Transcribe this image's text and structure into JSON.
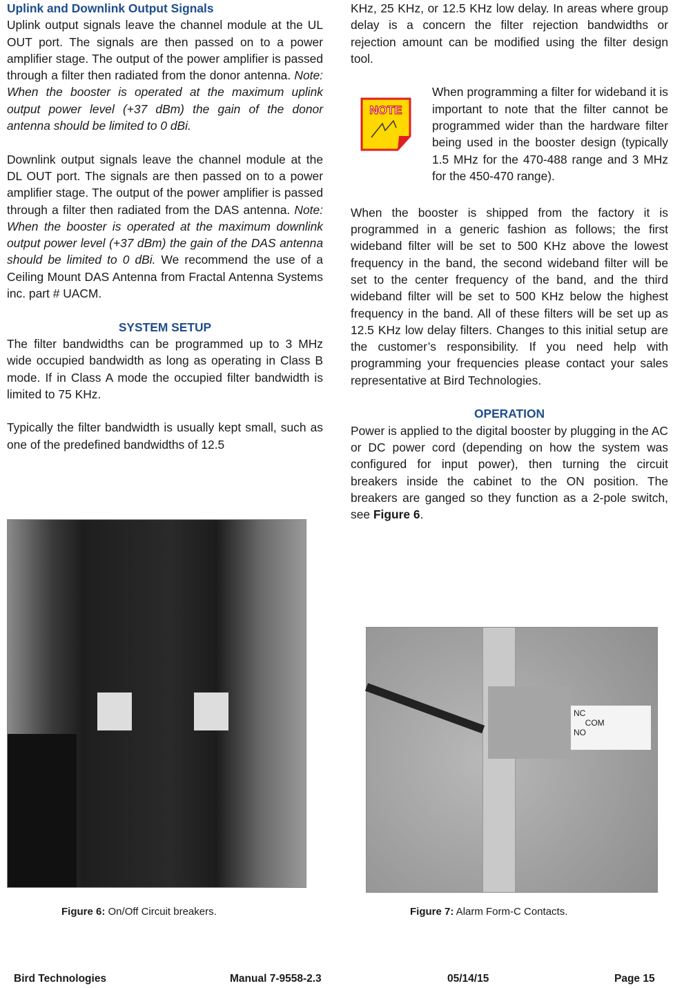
{
  "left_column": {
    "heading": "Uplink and Downlink Output Signals",
    "paragraphs": [
      [
        "Uplink output signals leave the channel module at the UL OUT port. The signals are then passed on to a power amplifier stage. The output of the power amplifier is passed through a filter then radiated from the donor antenna. ",
        "Note: When the booster is operated at the maximum uplink output power level (+37 dBm) the gain of the donor antenna should be limited to 0 dBi."
      ],
      [
        "Downlink output signals leave the channel module at the DL OUT port. The signals are then passed on to a power amplifier stage. The output of the power amplifier is passed through a filter then radiated from the DAS antenna. ",
        "Note: When the booster is operated at the maximum downlink output power level (+37 dBm) the gain of the DAS antenna should be limited to 0 dBi.",
        " We recommend the use of a Ceiling Mount DAS Antenna from Fractal Antenna Systems inc. part # UACM."
      ]
    ],
    "section_heading": "SYSTEM SETUP",
    "section_paragraphs": [
      "The filter bandwidths can be programmed up to 3 MHz wide occupied bandwidth as long as operating in Class B mode. If in Class A mode the occupied filter bandwidth is limited to 75 KHz.",
      "Typically the filter bandwidth is usually kept small, such as one of the predefined bandwidths of 12.5"
    ]
  },
  "right_column": {
    "continuation": "KHz, 25 KHz, or 12.5 KHz low delay. In areas where group delay is a concern the filter rejection bandwidths or rejection amount can be modified using the filter design tool.",
    "note_icon": "NOTE",
    "note": "When programming a filter for wideband it is important to note that the filter cannot be programmed wider than the hardware filter being used in the booster design (typically 1.5 MHz for the 470-488 range and 3 MHz for the 450-470 range).",
    "shipping": "When the booster is shipped from the factory it is programmed in a generic fashion as follows; the first wideband filter will be set to 500 KHz above the lowest frequency in the band, the second wideband filter will be set to the center frequency of the band, and the third wideband filter will be set to 500 KHz below the highest frequency in the band. All of these filters will be set up as 12.5 KHz low delay filters. Changes to this initial setup are the customer’s responsibility. If you need help with programming your frequencies please contact your sales representative at Bird Technologies.",
    "section_heading": "OPERATION",
    "operation": [
      "Power is applied to the digital booster by plugging in the AC or DC power cord (depending on how the system was configured for input power), then turning the circuit breakers inside the cabinet to the ON position. The breakers are ganged so they function as a 2-pole switch, see ",
      "Figure 6",
      "."
    ]
  },
  "figures": [
    {
      "label": "Figure 6:",
      "caption": " On/Off Circuit breakers."
    },
    {
      "label": "Figure 7:",
      "caption": " Alarm Form-C Contacts."
    }
  ],
  "footer": {
    "company": "Bird Technologies",
    "manual": "Manual 7-9558-2.3",
    "date": "05/14/15",
    "page": "Page 15"
  }
}
